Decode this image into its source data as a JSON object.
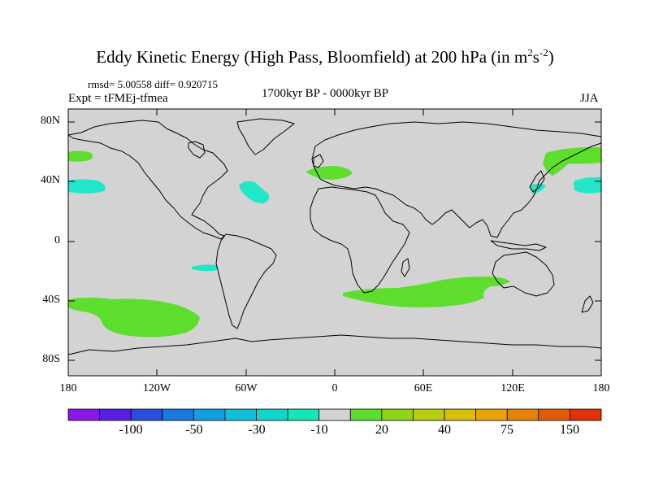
{
  "figure": {
    "title": "Eddy Kinetic Energy (High Pass, Bloomfield) at 200 hPa (in m",
    "title_sup1": "2",
    "title_mid": "s",
    "title_sup2": "-2",
    "title_end": ")",
    "stats": "rmsd= 5.00558 diff= 0.920715",
    "experiment": "Expt = tFMEj-tfmea",
    "period": "1700kyr BP - 0000kyr BP",
    "season": "JJA"
  },
  "map": {
    "lat_ticks": [
      "80N",
      "40N",
      "0",
      "40S",
      "80S"
    ],
    "lon_ticks": [
      "180",
      "120W",
      "60W",
      "0",
      "60E",
      "120E",
      "180"
    ],
    "background_color": "#d3d3d3",
    "anomaly_regions": [
      {
        "name": "north-pacific-west-positive",
        "sign": "positive",
        "color": "#5ddd2c"
      },
      {
        "name": "north-pacific-east-positive",
        "sign": "positive",
        "color": "#5ddd2c"
      },
      {
        "name": "north-pacific-west-negative",
        "sign": "negative",
        "color": "#22e6c8"
      },
      {
        "name": "north-pacific-east-negative",
        "sign": "negative",
        "color": "#22e6c8"
      },
      {
        "name": "north-atlantic-negative",
        "sign": "negative",
        "color": "#22e6c8"
      },
      {
        "name": "europe-positive",
        "sign": "positive",
        "color": "#5ddd2c"
      },
      {
        "name": "tropical-pacific-negative",
        "sign": "negative",
        "color": "#22e6c8"
      },
      {
        "name": "south-pacific-positive",
        "sign": "positive",
        "color": "#5ddd2c"
      },
      {
        "name": "southern-indian-ocean-positive",
        "sign": "positive",
        "color": "#5ddd2c"
      }
    ]
  },
  "colorbar": {
    "colors": [
      "#8a17e8",
      "#5a1ee4",
      "#2a4ee0",
      "#1b78e0",
      "#139fdc",
      "#10bfd8",
      "#12d6cc",
      "#14e6b6",
      "#d3d3d3",
      "#5ddd2c",
      "#8ed31a",
      "#b8cc10",
      "#d8bf0a",
      "#e6a408",
      "#e48306",
      "#e25c08",
      "#df3208"
    ],
    "labels": [
      "-100",
      "-50",
      "-30",
      "-10",
      "20",
      "40",
      "75",
      "150"
    ]
  }
}
